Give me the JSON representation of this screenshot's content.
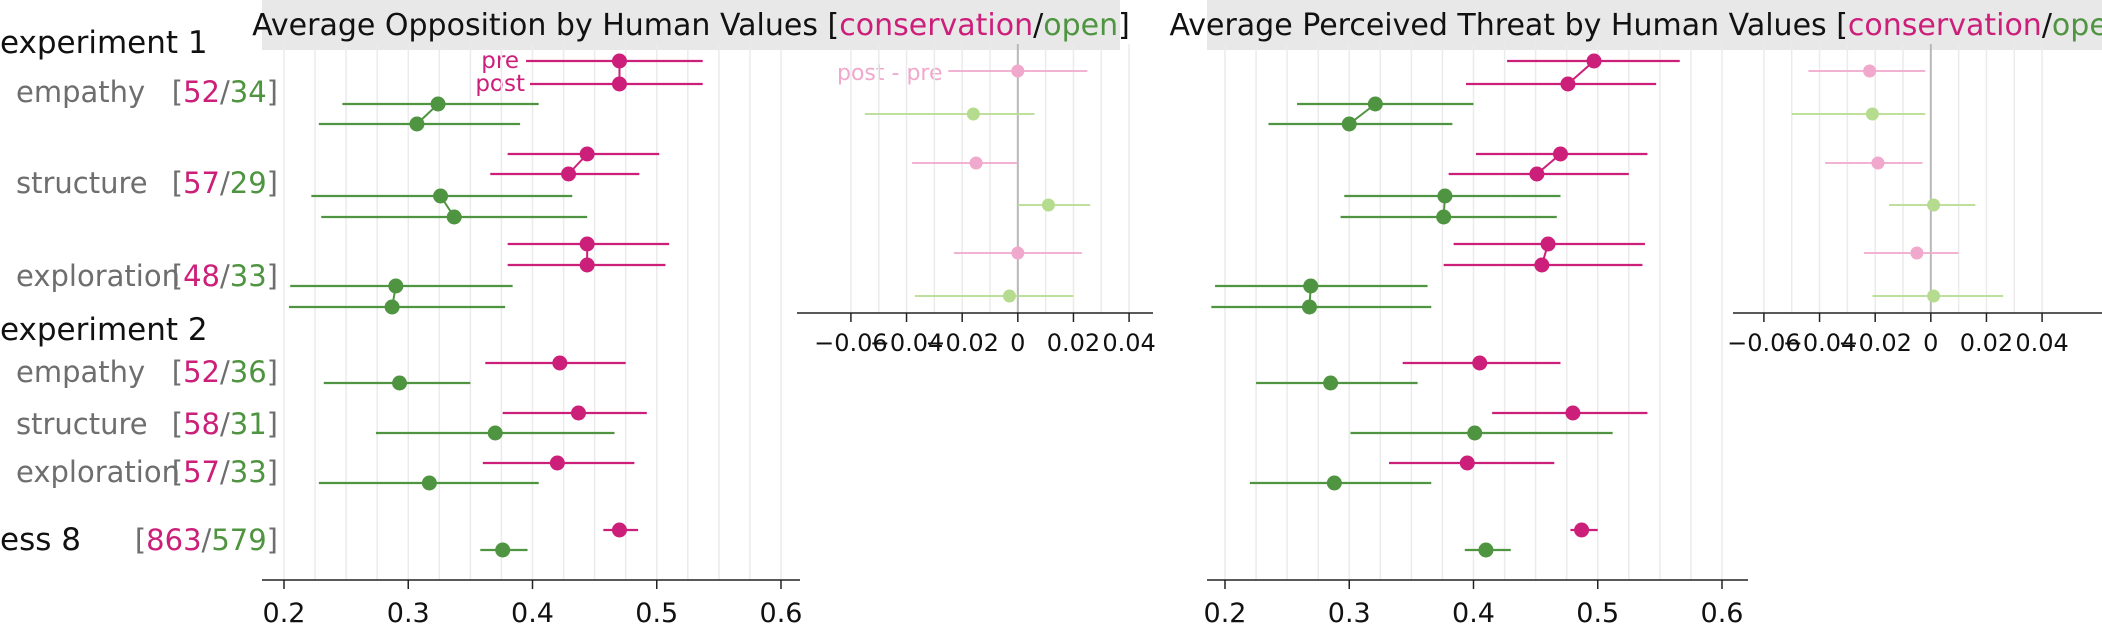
{
  "colors": {
    "conservation": "#cc1f7a",
    "open": "#4f9440",
    "diff_conservation": "#f0a8cc",
    "diff_open": "#b5dc8e",
    "grid": "#ebebeb",
    "title_bg": "#e8e8e8"
  },
  "labels": {
    "groups": [
      "experiment 1",
      "experiment 2",
      "ess 8"
    ],
    "rows": [
      "empathy",
      "structure",
      "exploration"
    ],
    "pre": "pre",
    "post": "post",
    "diff": "post - pre",
    "conservation": "conservation",
    "open": "open",
    "slash": "/",
    "lb": "[",
    "rb": "]"
  },
  "counts": [
    {
      "c": "52",
      "o": "34"
    },
    {
      "c": "57",
      "o": "29"
    },
    {
      "c": "48",
      "o": "33"
    },
    {
      "c": "52",
      "o": "36"
    },
    {
      "c": "58",
      "o": "31"
    },
    {
      "c": "57",
      "o": "33"
    },
    {
      "c": "863",
      "o": "579"
    }
  ],
  "chart_data": [
    {
      "type": "scatter",
      "title_prefix": "Average Opposition by Human Values",
      "xlim": [
        0.2,
        0.6
      ],
      "xticks": [
        "0.2",
        "0.3",
        "0.4",
        "0.5",
        "0.6"
      ],
      "rows": [
        {
          "label": "experiment 1 empathy",
          "pre": {
            "conservation": [
              0.47,
              0.395,
              0.537
            ],
            "open": [
              0.324,
              0.247,
              0.405
            ]
          },
          "post": {
            "conservation": [
              0.47,
              0.398,
              0.537
            ],
            "open": [
              0.307,
              0.228,
              0.39
            ]
          }
        },
        {
          "label": "experiment 1 structure",
          "pre": {
            "conservation": [
              0.444,
              0.38,
              0.502
            ],
            "open": [
              0.326,
              0.222,
              0.432
            ]
          },
          "post": {
            "conservation": [
              0.429,
              0.366,
              0.486
            ],
            "open": [
              0.337,
              0.23,
              0.444
            ]
          }
        },
        {
          "label": "experiment 1 exploration",
          "pre": {
            "conservation": [
              0.444,
              0.38,
              0.51
            ],
            "open": [
              0.29,
              0.205,
              0.384
            ]
          },
          "post": {
            "conservation": [
              0.444,
              0.38,
              0.507
            ],
            "open": [
              0.287,
              0.204,
              0.378
            ]
          }
        },
        {
          "label": "experiment 2 empathy",
          "conservation": [
            0.422,
            0.362,
            0.475
          ],
          "open": [
            0.293,
            0.232,
            0.35
          ]
        },
        {
          "label": "experiment 2 structure",
          "conservation": [
            0.437,
            0.376,
            0.492
          ],
          "open": [
            0.37,
            0.274,
            0.466
          ]
        },
        {
          "label": "experiment 2 exploration",
          "conservation": [
            0.42,
            0.36,
            0.482
          ],
          "open": [
            0.317,
            0.228,
            0.405
          ]
        },
        {
          "label": "ess 8",
          "conservation": [
            0.47,
            0.457,
            0.485
          ],
          "open": [
            0.376,
            0.358,
            0.396
          ]
        }
      ],
      "difference": {
        "label": "post - pre",
        "xlim": [
          -0.065,
          0.045
        ],
        "xticks": [
          "−0.06",
          "−0.04",
          "−0.02",
          "0",
          "0.02",
          "0.04"
        ],
        "rows": [
          {
            "conservation": [
              0.0,
              -0.025,
              0.025
            ],
            "open": [
              -0.016,
              -0.055,
              0.006
            ]
          },
          {
            "conservation": [
              -0.015,
              -0.038,
              0.0
            ],
            "open": [
              0.011,
              0.0,
              0.026
            ]
          },
          {
            "conservation": [
              0.0,
              -0.023,
              0.023
            ],
            "open": [
              -0.003,
              -0.037,
              0.02
            ]
          }
        ]
      }
    },
    {
      "type": "scatter",
      "title_prefix": "Average Perceived Threat by Human Values",
      "xlim": [
        0.2,
        0.6
      ],
      "xticks": [
        "0.2",
        "0.3",
        "0.4",
        "0.5",
        "0.6"
      ],
      "rows": [
        {
          "label": "experiment 1 empathy",
          "pre": {
            "conservation": [
              0.497,
              0.427,
              0.566
            ],
            "open": [
              0.321,
              0.258,
              0.4
            ]
          },
          "post": {
            "conservation": [
              0.476,
              0.394,
              0.547
            ],
            "open": [
              0.3,
              0.235,
              0.383
            ]
          }
        },
        {
          "label": "experiment 1 structure",
          "pre": {
            "conservation": [
              0.47,
              0.402,
              0.54
            ],
            "open": [
              0.377,
              0.296,
              0.47
            ]
          },
          "post": {
            "conservation": [
              0.451,
              0.38,
              0.525
            ],
            "open": [
              0.376,
              0.293,
              0.467
            ]
          }
        },
        {
          "label": "experiment 1 exploration",
          "pre": {
            "conservation": [
              0.46,
              0.384,
              0.538
            ],
            "open": [
              0.269,
              0.192,
              0.363
            ]
          },
          "post": {
            "conservation": [
              0.455,
              0.376,
              0.536
            ],
            "open": [
              0.268,
              0.189,
              0.366
            ]
          }
        },
        {
          "label": "experiment 2 empathy",
          "conservation": [
            0.405,
            0.343,
            0.47
          ],
          "open": [
            0.285,
            0.225,
            0.355
          ]
        },
        {
          "label": "experiment 2 structure",
          "conservation": [
            0.48,
            0.415,
            0.54
          ],
          "open": [
            0.401,
            0.301,
            0.512
          ]
        },
        {
          "label": "experiment 2 exploration",
          "conservation": [
            0.395,
            0.332,
            0.465
          ],
          "open": [
            0.288,
            0.22,
            0.366
          ]
        },
        {
          "label": "ess 8",
          "conservation": [
            0.487,
            0.478,
            0.5
          ],
          "open": [
            0.41,
            0.393,
            0.43
          ]
        }
      ],
      "difference": {
        "label": "post - pre",
        "xlim": [
          -0.065,
          0.045
        ],
        "xticks": [
          "−0.06",
          "−0.04",
          "−0.02",
          "0",
          "0.02",
          "0.04"
        ],
        "rows": [
          {
            "conservation": [
              -0.022,
              -0.044,
              -0.002
            ],
            "open": [
              -0.021,
              -0.05,
              -0.002
            ]
          },
          {
            "conservation": [
              -0.019,
              -0.038,
              -0.003
            ],
            "open": [
              0.001,
              -0.015,
              0.016
            ]
          },
          {
            "conservation": [
              -0.005,
              -0.024,
              0.01
            ],
            "open": [
              0.001,
              -0.021,
              0.026
            ]
          }
        ]
      }
    }
  ]
}
